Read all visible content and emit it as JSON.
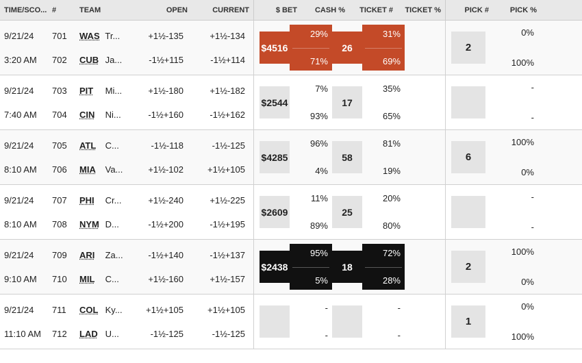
{
  "colors": {
    "highlight_red": "#c44a28",
    "highlight_black": "#111111",
    "box_gray": "#e4e4e4",
    "header_bg": "#e8e8e8"
  },
  "header": {
    "time_score": "TIME/SCO...",
    "num": "#",
    "team": "TEAM",
    "open": "OPEN",
    "current": "CURRENT",
    "bet": "$ BET",
    "cash_pct": "CASH %",
    "ticket_num": "TICKET #",
    "ticket_pct": "TICKET %",
    "pick_num": "PICK #",
    "pick_pct": "PICK %"
  },
  "games": [
    {
      "date": "9/21/24",
      "time": "3:20 AM",
      "away": {
        "num": "701",
        "abbr": "WAS",
        "name": "Tr...",
        "open": "+1½-135",
        "current": "+1½-134"
      },
      "home": {
        "num": "702",
        "abbr": "CUB",
        "name": "Ja...",
        "open": "-1½+115",
        "current": "-1½+114"
      },
      "bet": "$4516",
      "cash_a": "29%",
      "cash_h": "71%",
      "tickets": "26",
      "ticket_a": "31%",
      "ticket_h": "69%",
      "picks": "2",
      "pick_a": "0%",
      "pick_h": "100%",
      "highlight": "red"
    },
    {
      "date": "9/21/24",
      "time": "7:40 AM",
      "away": {
        "num": "703",
        "abbr": "PIT",
        "name": "Mi...",
        "open": "+1½-180",
        "current": "+1½-182"
      },
      "home": {
        "num": "704",
        "abbr": "CIN",
        "name": "Ni...",
        "open": "-1½+160",
        "current": "-1½+162"
      },
      "bet": "$2544",
      "cash_a": "7%",
      "cash_h": "93%",
      "tickets": "17",
      "ticket_a": "35%",
      "ticket_h": "65%",
      "picks": "",
      "pick_a": "-",
      "pick_h": "-",
      "highlight": ""
    },
    {
      "date": "9/21/24",
      "time": "8:10 AM",
      "away": {
        "num": "705",
        "abbr": "ATL",
        "name": "C...",
        "open": "-1½-118",
        "current": "-1½-125"
      },
      "home": {
        "num": "706",
        "abbr": "MIA",
        "name": "Va...",
        "open": "+1½-102",
        "current": "+1½+105"
      },
      "bet": "$4285",
      "cash_a": "96%",
      "cash_h": "4%",
      "tickets": "58",
      "ticket_a": "81%",
      "ticket_h": "19%",
      "picks": "6",
      "pick_a": "100%",
      "pick_h": "0%",
      "highlight": ""
    },
    {
      "date": "9/21/24",
      "time": "8:10 AM",
      "away": {
        "num": "707",
        "abbr": "PHI",
        "name": "Cr...",
        "open": "+1½-240",
        "current": "+1½-225"
      },
      "home": {
        "num": "708",
        "abbr": "NYM",
        "name": "D...",
        "open": "-1½+200",
        "current": "-1½+195"
      },
      "bet": "$2609",
      "cash_a": "11%",
      "cash_h": "89%",
      "tickets": "25",
      "ticket_a": "20%",
      "ticket_h": "80%",
      "picks": "",
      "pick_a": "-",
      "pick_h": "-",
      "highlight": ""
    },
    {
      "date": "9/21/24",
      "time": "9:10 AM",
      "away": {
        "num": "709",
        "abbr": "ARI",
        "name": "Za...",
        "open": "-1½+140",
        "current": "-1½+137"
      },
      "home": {
        "num": "710",
        "abbr": "MIL",
        "name": "C...",
        "open": "+1½-160",
        "current": "+1½-157"
      },
      "bet": "$2438",
      "cash_a": "95%",
      "cash_h": "5%",
      "tickets": "18",
      "ticket_a": "72%",
      "ticket_h": "28%",
      "picks": "2",
      "pick_a": "100%",
      "pick_h": "0%",
      "highlight": "black"
    },
    {
      "date": "9/21/24",
      "time": "11:10 AM",
      "away": {
        "num": "711",
        "abbr": "COL",
        "name": "Ky...",
        "open": "+1½+105",
        "current": "+1½+105"
      },
      "home": {
        "num": "712",
        "abbr": "LAD",
        "name": "U...",
        "open": "-1½-125",
        "current": "-1½-125"
      },
      "bet": "",
      "cash_a": "-",
      "cash_h": "-",
      "tickets": "",
      "ticket_a": "-",
      "ticket_h": "-",
      "picks": "1",
      "pick_a": "0%",
      "pick_h": "100%",
      "highlight": ""
    }
  ]
}
